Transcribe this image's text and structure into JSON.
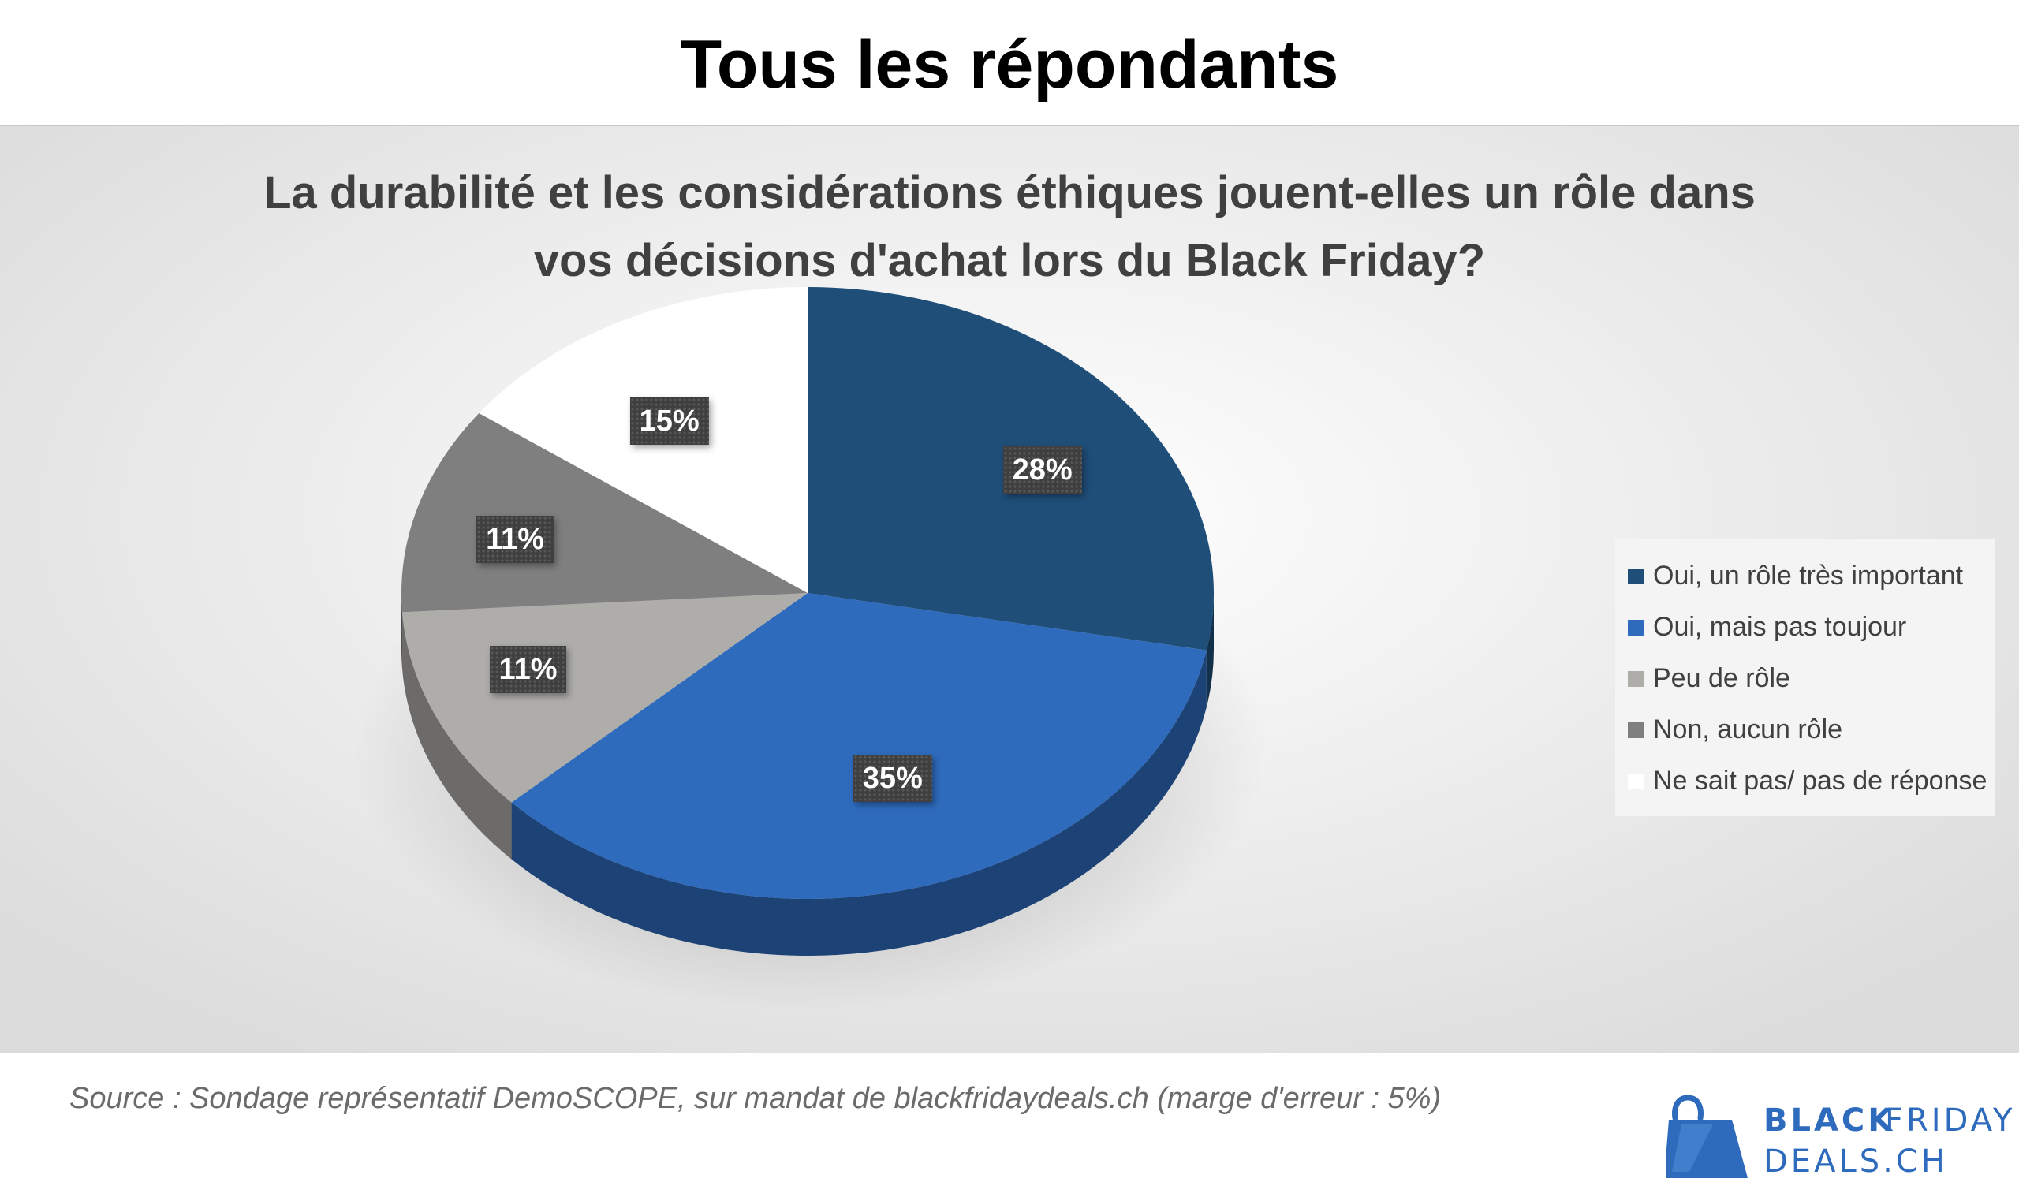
{
  "header": {
    "title": "Tous les répondants"
  },
  "chart_data": {
    "type": "pie",
    "title_lines": [
      "La durabilité et les considérations éthiques jouent-elles un rôle dans",
      "vos décisions d'achat lors du Black Friday?"
    ],
    "slices": [
      {
        "name": "Oui, un rôle très important",
        "value": 28,
        "label": "28%",
        "color": "#1f4e79"
      },
      {
        "name": "Oui, mais pas toujour",
        "value": 35,
        "label": "35%",
        "color": "#2e6bbd"
      },
      {
        "name": "Peu de rôle",
        "value": 11,
        "label": "11%",
        "color": "#aeadaa"
      },
      {
        "name": "Non, aucun rôle",
        "value": 11,
        "label": "11%",
        "color": "#7f7f7f"
      },
      {
        "name": "Ne sait pas/ pas de réponse",
        "value": 15,
        "label": "15%",
        "color": "#ffffff"
      }
    ],
    "start_angle_deg": 0,
    "direction": "clockwise",
    "legend_position": "right",
    "style": "3d"
  },
  "footer": {
    "source": "Source : Sondage représentatif DemoSCOPE, sur mandat de blackfridaydeals.ch (marge d'erreur : 5%)",
    "logo": {
      "line1a": "BLACK",
      "line1b": "FRIDAY",
      "line2": "DEALS.CH",
      "icon": "shopping-bag-icon",
      "color": "#2e6bbd"
    }
  }
}
